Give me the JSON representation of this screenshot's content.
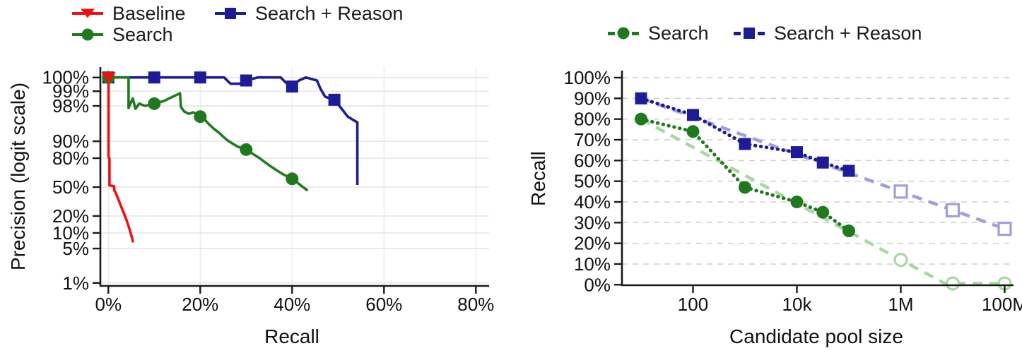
{
  "legend_left": {
    "items": [
      {
        "label": "Baseline",
        "color": "#ee1111",
        "marker": "triangle-down"
      },
      {
        "label": "Search",
        "color": "#1f7a1f",
        "marker": "circle"
      },
      {
        "label": "Search + Reason",
        "color": "#1c1c96",
        "marker": "square"
      }
    ]
  },
  "legend_right": {
    "items": [
      {
        "label": "Search",
        "color": "#1f7a1f",
        "marker": "circle",
        "line_style": "dashed"
      },
      {
        "label": "Search + Reason",
        "color": "#1c1c96",
        "marker": "square",
        "line_style": "dashed"
      }
    ]
  },
  "colors": {
    "red": "#ee1111",
    "green": "#1f7a1f",
    "navy": "#1c1c96",
    "light_green": "#a6d8a0",
    "lavender": "#9f9fdd",
    "grid_left": "#e4e4e4",
    "grid_left_v": "#ebebeb",
    "grid_right": "#cfcfcf",
    "spine": "#1a1a1a"
  },
  "chart_data": [
    {
      "type": "line",
      "title": "",
      "xlabel": "Recall",
      "ylabel": "Precision (logit scale)",
      "x_scale": "linear",
      "y_scale": "logit",
      "xlim": [
        0,
        83
      ],
      "x_ticks": [
        {
          "label": "0%",
          "value": 0
        },
        {
          "label": "20%",
          "value": 20
        },
        {
          "label": "40%",
          "value": 40
        },
        {
          "label": "60%",
          "value": 60
        },
        {
          "label": "80%",
          "value": 80
        }
      ],
      "y_ticks": [
        {
          "label": "100%",
          "value": 100
        },
        {
          "label": "99%",
          "value": 99
        },
        {
          "label": "98%",
          "value": 98
        },
        {
          "label": "90%",
          "value": 90
        },
        {
          "label": "80%",
          "value": 80
        },
        {
          "label": "50%",
          "value": 50
        },
        {
          "label": "20%",
          "value": 20
        },
        {
          "label": "10%",
          "value": 10
        },
        {
          "label": "5%",
          "value": 5
        },
        {
          "label": "1%",
          "value": 1
        }
      ],
      "grid": {
        "horizontal": true,
        "vertical": true,
        "style": "solid"
      },
      "series": [
        {
          "name": "Search + Reason",
          "color": "#1c1c96",
          "marker": "square",
          "style": "solid",
          "points": [
            [
              0,
              100
            ],
            [
              14.6,
              100
            ],
            [
              15.2,
              99.8
            ],
            [
              16.2,
              100
            ],
            [
              23.8,
              100
            ],
            [
              25.2,
              99.6
            ],
            [
              26.6,
              99.3
            ],
            [
              28.5,
              99.3
            ],
            [
              30,
              99.4
            ],
            [
              32.5,
              99.7
            ],
            [
              35,
              99.6
            ],
            [
              37.5,
              99.5
            ],
            [
              39.5,
              99.2
            ],
            [
              41.5,
              99.4
            ],
            [
              43,
              99.5
            ],
            [
              45.4,
              99.4
            ],
            [
              46.2,
              99.1
            ],
            [
              47.2,
              98.7
            ],
            [
              49.2,
              98.5
            ],
            [
              50.8,
              97.7
            ],
            [
              52.1,
              96.7
            ],
            [
              53.2,
              96.2
            ],
            [
              54.2,
              95.7
            ],
            [
              54.2,
              52.5
            ]
          ],
          "markers": [
            [
              0,
              100
            ],
            [
              10,
              100
            ],
            [
              20,
              100
            ],
            [
              30,
              99.4
            ],
            [
              40,
              99.2
            ],
            [
              49.2,
              98.5
            ]
          ]
        },
        {
          "name": "Search",
          "color": "#1f7a1f",
          "marker": "circle",
          "style": "solid",
          "points": [
            [
              0,
              100
            ],
            [
              4.4,
              100
            ],
            [
              4.4,
              97.8
            ],
            [
              5.3,
              98.6
            ],
            [
              5.9,
              97.7
            ],
            [
              6.7,
              98.2
            ],
            [
              8,
              98.0
            ],
            [
              10,
              98.2
            ],
            [
              12,
              98.4
            ],
            [
              15.6,
              98.9
            ],
            [
              15.8,
              97.9
            ],
            [
              16.5,
              97.4
            ],
            [
              17.5,
              97.1
            ],
            [
              18.5,
              97.3
            ],
            [
              20,
              96.7
            ],
            [
              21,
              96.2
            ],
            [
              22,
              95.2
            ],
            [
              23,
              94.2
            ],
            [
              24,
              93.2
            ],
            [
              25,
              91.8
            ],
            [
              26,
              90.3
            ],
            [
              27,
              89.0
            ],
            [
              28,
              87.6
            ],
            [
              29,
              86.6
            ],
            [
              30,
              85.8
            ],
            [
              31,
              84.0
            ],
            [
              32,
              82.0
            ],
            [
              33,
              79.8
            ],
            [
              34,
              77.0
            ],
            [
              35,
              74.0
            ],
            [
              36,
              71.0
            ],
            [
              37,
              68.0
            ],
            [
              38,
              65.0
            ],
            [
              39,
              62.3
            ],
            [
              40,
              59.8
            ],
            [
              41,
              56.0
            ],
            [
              42,
              51.5
            ],
            [
              43,
              47.5
            ],
            [
              43.4,
              45.8
            ]
          ],
          "markers": [
            [
              0,
              100
            ],
            [
              10,
              98.2
            ],
            [
              20,
              96.7
            ],
            [
              30,
              85.8
            ],
            [
              40,
              59.8
            ]
          ]
        },
        {
          "name": "Baseline",
          "color": "#ee1111",
          "marker": "triangle-down",
          "style": "solid",
          "points": [
            [
              0.05,
              100
            ],
            [
              0.05,
              81
            ],
            [
              0.25,
              80
            ],
            [
              0.25,
              52
            ],
            [
              1.25,
              51
            ],
            [
              1.3,
              46
            ],
            [
              1.6,
              43
            ],
            [
              2.0,
              38
            ],
            [
              2.4,
              33
            ],
            [
              2.7,
              29
            ],
            [
              3.1,
              25
            ],
            [
              3.5,
              21
            ],
            [
              3.9,
              17.5
            ],
            [
              4.3,
              14
            ],
            [
              4.7,
              11
            ],
            [
              5.0,
              9
            ],
            [
              5.2,
              7.8
            ],
            [
              5.4,
              6.6
            ]
          ],
          "markers": [
            [
              0.05,
              100
            ]
          ]
        }
      ]
    },
    {
      "type": "line",
      "title": "",
      "xlabel": "Candidate pool size",
      "ylabel": "Recall",
      "x_scale": "log10",
      "y_scale": "linear",
      "xlim_log10": [
        0.6,
        8.2
      ],
      "ylim": [
        0,
        100
      ],
      "x_ticks": [
        {
          "label": "100",
          "log10": 2
        },
        {
          "label": "10k",
          "log10": 4
        },
        {
          "label": "1M",
          "log10": 6
        },
        {
          "label": "100M",
          "log10": 8
        }
      ],
      "y_ticks": [
        {
          "label": "100%",
          "value": 100
        },
        {
          "label": "90%",
          "value": 90
        },
        {
          "label": "80%",
          "value": 80
        },
        {
          "label": "70%",
          "value": 70
        },
        {
          "label": "60%",
          "value": 60
        },
        {
          "label": "50%",
          "value": 50
        },
        {
          "label": "40%",
          "value": 40
        },
        {
          "label": "30%",
          "value": 30
        },
        {
          "label": "20%",
          "value": 20
        },
        {
          "label": "10%",
          "value": 10
        },
        {
          "label": "0%",
          "value": 0
        }
      ],
      "grid": {
        "horizontal": true,
        "vertical": false,
        "style": "dashed"
      },
      "series": [
        {
          "name": "Search + Reason (extrapolated)",
          "color": "#9f9fdd",
          "marker": "square-open",
          "style": "dashed",
          "pool_sizes": [
            10,
            100000000
          ],
          "points": [
            [
              1,
              90
            ],
            [
              8,
              27
            ]
          ],
          "markers": [
            [
              6,
              45
            ],
            [
              7,
              36
            ],
            [
              8,
              27
            ]
          ],
          "marker_values": {
            "1M": 45,
            "10M": 36,
            "100M": 27
          }
        },
        {
          "name": "Search (extrapolated)",
          "color": "#a6d8a0",
          "marker": "circle-open",
          "style": "dashed",
          "pool_sizes": [
            10,
            100000000
          ],
          "points": [
            [
              1,
              80
            ],
            [
              2,
              66.4
            ],
            [
              3,
              52.8
            ],
            [
              4,
              39.2
            ],
            [
              4.5,
              32.4
            ],
            [
              5,
              25.6
            ],
            [
              6,
              12
            ],
            [
              6.85,
              0.6
            ],
            [
              8,
              0.6
            ]
          ],
          "markers": [
            [
              6,
              12
            ],
            [
              7,
              0.6
            ],
            [
              8,
              0.6
            ]
          ],
          "marker_values": {
            "1M": 12,
            "10M": 1,
            "100M": 1
          }
        },
        {
          "name": "Search + Reason",
          "color": "#1c1c96",
          "marker": "square",
          "style": "dotted",
          "pool_sizes": [
            10,
            100,
            1000,
            10000,
            30000,
            100000
          ],
          "points": [
            [
              1,
              90
            ],
            [
              2,
              82
            ],
            [
              3,
              68
            ],
            [
              4,
              64
            ],
            [
              4.5,
              59
            ],
            [
              5,
              55
            ]
          ],
          "markers": [
            [
              1,
              90
            ],
            [
              2,
              82
            ],
            [
              3,
              68
            ],
            [
              4,
              64
            ],
            [
              4.5,
              59
            ],
            [
              5,
              55
            ]
          ]
        },
        {
          "name": "Search",
          "color": "#1f7a1f",
          "marker": "circle",
          "style": "dotted",
          "pool_sizes": [
            10,
            100,
            1000,
            10000,
            30000,
            100000
          ],
          "points": [
            [
              1,
              80
            ],
            [
              2,
              74
            ],
            [
              3,
              47
            ],
            [
              4,
              40
            ],
            [
              4.5,
              35
            ],
            [
              5,
              26
            ]
          ],
          "markers": [
            [
              1,
              80
            ],
            [
              2,
              74
            ],
            [
              3,
              47
            ],
            [
              4,
              40
            ],
            [
              4.5,
              35
            ],
            [
              5,
              26
            ]
          ]
        }
      ]
    }
  ]
}
